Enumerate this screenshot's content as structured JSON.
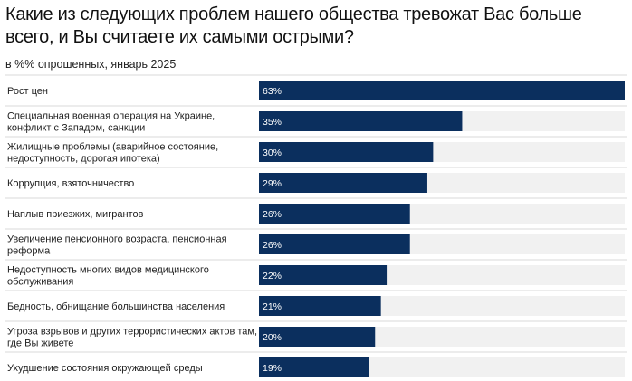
{
  "title": "Какие из следующих проблем нашего общества тревожат Вас больше всего, и Вы считаете их самыми острыми?",
  "subtitle": "в %% опрошенных, январь 2025",
  "colors": {
    "bar": "#0b2f5e",
    "track": "#f1f1f1",
    "divider": "#d9d9d9"
  },
  "chart_data": {
    "type": "bar",
    "orientation": "horizontal",
    "title": "Какие из следующих проблем нашего общества тревожат Вас больше всего, и Вы считаете их самыми острыми?",
    "subtitle": "в %% опрошенных, январь 2025",
    "xlim": [
      0,
      63
    ],
    "unit": "%",
    "categories": [
      [
        "Рост цен"
      ],
      [
        "Специальная военная операция на Украине,",
        "конфликт с Западом, санкции"
      ],
      [
        "Жилищные проблемы (аварийное состояние,",
        "недоступность, дорогая ипотека)"
      ],
      [
        "Коррупция, взяточничество"
      ],
      [
        "Наплыв приезжих, мигрантов"
      ],
      [
        "Увеличение пенсионного возраста, пенсионная",
        "реформа"
      ],
      [
        "Недоступность многих видов медицинского",
        "обслуживания"
      ],
      [
        "Бедность, обнищание большинства населения"
      ],
      [
        "Угроза взрывов и других террористических актов там,",
        "где Вы живете"
      ],
      [
        "Ухудшение состояния окружающей среды"
      ]
    ],
    "values": [
      63,
      35,
      30,
      29,
      26,
      26,
      22,
      21,
      20,
      19
    ],
    "value_labels": [
      "63%",
      "35%",
      "30%",
      "29%",
      "26%",
      "26%",
      "22%",
      "21%",
      "20%",
      "19%"
    ]
  }
}
